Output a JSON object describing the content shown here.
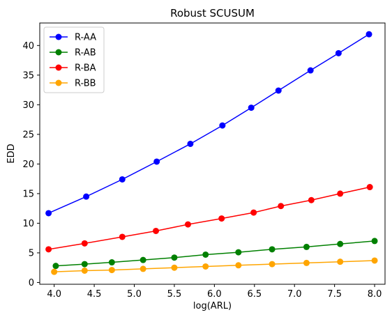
{
  "chart_data": {
    "type": "line",
    "title": "Robust SCUSUM",
    "xlabel": "log(ARL)",
    "ylabel": "EDD",
    "xlim": [
      3.82,
      8.13
    ],
    "ylim": [
      -0.3,
      43.8
    ],
    "xticks": [
      4.0,
      4.5,
      5.0,
      5.5,
      6.0,
      6.5,
      7.0,
      7.5,
      8.0
    ],
    "xtick_labels": [
      "4.0",
      "4.5",
      "5.0",
      "5.5",
      "6.0",
      "6.5",
      "7.0",
      "7.5",
      "8.0"
    ],
    "yticks": [
      0,
      5,
      10,
      15,
      20,
      25,
      30,
      35,
      40
    ],
    "ytick_labels": [
      "0",
      "5",
      "10",
      "15",
      "20",
      "25",
      "30",
      "35",
      "40"
    ],
    "grid": false,
    "legend_position": "top-left",
    "series": [
      {
        "name": "R-AA",
        "color": "#0000ff",
        "x": [
          3.93,
          4.4,
          4.85,
          5.28,
          5.7,
          6.1,
          6.46,
          6.8,
          7.2,
          7.55,
          7.93
        ],
        "y": [
          11.7,
          14.5,
          17.4,
          20.4,
          23.4,
          26.5,
          29.5,
          32.4,
          35.8,
          38.7,
          41.9
        ]
      },
      {
        "name": "R-AB",
        "color": "#008000",
        "x": [
          4.02,
          4.38,
          4.72,
          5.11,
          5.5,
          5.89,
          6.3,
          6.72,
          7.15,
          7.57,
          8.0
        ],
        "y": [
          2.8,
          3.1,
          3.4,
          3.8,
          4.2,
          4.7,
          5.1,
          5.6,
          6.0,
          6.5,
          7.0
        ]
      },
      {
        "name": "R-BA",
        "color": "#ff0000",
        "x": [
          3.93,
          4.38,
          4.85,
          5.27,
          5.67,
          6.09,
          6.49,
          6.83,
          7.21,
          7.57,
          7.94
        ],
        "y": [
          5.6,
          6.6,
          7.7,
          8.7,
          9.8,
          10.8,
          11.8,
          12.9,
          13.9,
          15.0,
          16.1
        ]
      },
      {
        "name": "R-BB",
        "color": "#ffa500",
        "x": [
          4.0,
          4.38,
          4.72,
          5.11,
          5.5,
          5.89,
          6.3,
          6.72,
          7.15,
          7.57,
          8.0
        ],
        "y": [
          1.8,
          2.0,
          2.1,
          2.3,
          2.5,
          2.7,
          2.9,
          3.1,
          3.3,
          3.5,
          3.7
        ]
      }
    ]
  }
}
